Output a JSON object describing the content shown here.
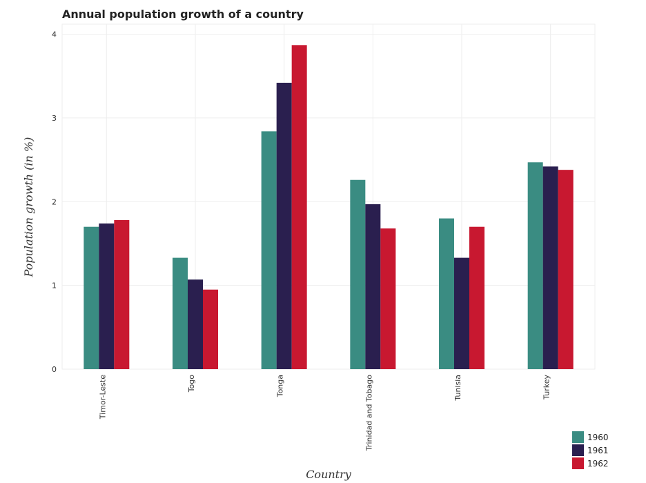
{
  "chart_data": {
    "type": "bar",
    "title": "Annual population growth of a country",
    "xlabel": "Country",
    "ylabel": "Population growth (in %)",
    "categories": [
      "Timor-Leste",
      "Togo",
      "Tonga",
      "Trinidad and Tobago",
      "Tunisia",
      "Turkey"
    ],
    "series": [
      {
        "name": "1960",
        "color": "#3a8c82",
        "values": [
          1.7,
          1.33,
          2.84,
          2.26,
          1.8,
          2.47
        ]
      },
      {
        "name": "1961",
        "color": "#2a1f4f",
        "values": [
          1.74,
          1.07,
          3.42,
          1.97,
          1.33,
          2.42
        ]
      },
      {
        "name": "1962",
        "color": "#c81830",
        "values": [
          1.78,
          0.95,
          3.87,
          1.68,
          1.7,
          2.38
        ]
      }
    ],
    "ylim": [
      0,
      4.12
    ],
    "yticks": [
      0,
      1,
      2,
      3,
      4
    ],
    "grid": true,
    "legend_position": "bottom-right"
  }
}
